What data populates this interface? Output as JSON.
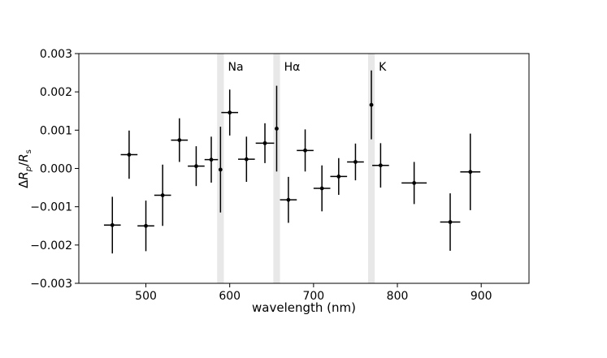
{
  "chart_data": {
    "type": "scatter",
    "title": "",
    "xlabel": "wavelength (nm)",
    "ylabel": "ΔRp/Rs",
    "xlim": [
      420,
      957
    ],
    "ylim": [
      -0.003,
      0.003
    ],
    "xticks": [
      500,
      600,
      700,
      800,
      900
    ],
    "xtick_labels": [
      "500",
      "600",
      "700",
      "800",
      "900"
    ],
    "yticks": [
      -0.003,
      -0.002,
      -0.001,
      0.0,
      0.001,
      0.002,
      0.003
    ],
    "ytick_labels": [
      "−0.003",
      "−0.002",
      "−0.001",
      "0.000",
      "0.001",
      "0.002",
      "0.003"
    ],
    "grid": false,
    "marker_color": "#000000",
    "band_color": "#e8e8e8",
    "bands": [
      {
        "label": "Na",
        "x_from": 585,
        "x_to": 593
      },
      {
        "label": "Hα",
        "x_from": 652,
        "x_to": 660
      },
      {
        "label": "K",
        "x_from": 765,
        "x_to": 773
      }
    ],
    "points": [
      {
        "x": 460,
        "y": -0.00148,
        "xerr": 10,
        "yerr": 0.00074
      },
      {
        "x": 480,
        "y": 0.00036,
        "xerr": 10,
        "yerr": 0.00063
      },
      {
        "x": 500,
        "y": -0.0015,
        "xerr": 10,
        "yerr": 0.00066
      },
      {
        "x": 520,
        "y": -0.0007,
        "xerr": 10,
        "yerr": 0.0008
      },
      {
        "x": 540,
        "y": 0.00074,
        "xerr": 10,
        "yerr": 0.00057
      },
      {
        "x": 560,
        "y": 6e-05,
        "xerr": 10,
        "yerr": 0.00052
      },
      {
        "x": 578,
        "y": 0.00023,
        "xerr": 8,
        "yerr": 0.0006
      },
      {
        "x": 589,
        "y": -3e-05,
        "xerr": 0,
        "yerr": 0.00112
      },
      {
        "x": 600,
        "y": 0.00146,
        "xerr": 10,
        "yerr": 0.0006
      },
      {
        "x": 620,
        "y": 0.00024,
        "xerr": 10,
        "yerr": 0.00059
      },
      {
        "x": 642,
        "y": 0.00066,
        "xerr": 11,
        "yerr": 0.00052
      },
      {
        "x": 656,
        "y": 0.00104,
        "xerr": 0,
        "yerr": 0.00112
      },
      {
        "x": 670,
        "y": -0.00082,
        "xerr": 10,
        "yerr": 0.0006
      },
      {
        "x": 690,
        "y": 0.00047,
        "xerr": 10,
        "yerr": 0.00055
      },
      {
        "x": 710,
        "y": -0.00052,
        "xerr": 10,
        "yerr": 0.0006
      },
      {
        "x": 730,
        "y": -0.00021,
        "xerr": 10,
        "yerr": 0.00048
      },
      {
        "x": 750,
        "y": 0.00017,
        "xerr": 10,
        "yerr": 0.00048
      },
      {
        "x": 769,
        "y": 0.00166,
        "xerr": 0,
        "yerr": 0.0009
      },
      {
        "x": 780,
        "y": 8e-05,
        "xerr": 10,
        "yerr": 0.00058
      },
      {
        "x": 820,
        "y": -0.00038,
        "xerr": 15,
        "yerr": 0.00055
      },
      {
        "x": 863,
        "y": -0.0014,
        "xerr": 12,
        "yerr": 0.00075
      },
      {
        "x": 887,
        "y": -9e-05,
        "xerr": 12,
        "yerr": 0.001
      }
    ]
  }
}
